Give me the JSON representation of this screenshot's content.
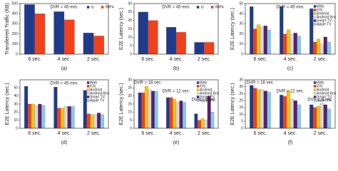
{
  "chart_data": [
    {
      "type": "bar",
      "caption": "(a)",
      "y_label": "Transferred Traffic (KB)",
      "annotations": [
        "DVR = 45 min."
      ],
      "categories": [
        "6 sec.",
        "4 sec.",
        "2 sec."
      ],
      "series": [
        {
          "name": "ts",
          "color": "#1f3b8c",
          "values": [
            490,
            420,
            210
          ]
        },
        {
          "name": "fMP4",
          "color": "#f0401c",
          "values": [
            400,
            340,
            180
          ]
        }
      ],
      "ylim": [
        0,
        500
      ],
      "yticks": [
        0,
        100,
        200,
        300,
        400,
        500
      ],
      "legend": "upper right"
    },
    {
      "type": "bar",
      "caption": "(b)",
      "y_label": "E2E Latency (sec.)",
      "annotations": [
        "DVR = 45 min."
      ],
      "categories": [
        "6 sec.",
        "4 sec.",
        "2 sec."
      ],
      "series": [
        {
          "name": "ts",
          "color": "#1f3b8c",
          "values": [
            25,
            16,
            7
          ]
        },
        {
          "name": "fMP4",
          "color": "#f0401c",
          "values": [
            20,
            13,
            7
          ]
        }
      ],
      "ylim": [
        0,
        30
      ],
      "yticks": [
        0,
        5,
        10,
        15,
        20,
        25,
        30
      ],
      "legend": "upper right"
    },
    {
      "type": "bar",
      "caption": "(c)",
      "y_label": "E2E Latency (sec.)",
      "annotations": [
        "DVR = 45 min."
      ],
      "categories": [
        "6 sec.",
        "4 sec.",
        "2 sec."
      ],
      "series": [
        {
          "name": "Web",
          "color": "#1f3b8c",
          "values": [
            47,
            47,
            45
          ]
        },
        {
          "name": "iOS",
          "color": "#f0401c",
          "values": [
            25,
            20,
            12
          ]
        },
        {
          "name": "Android",
          "color": "#f5c518",
          "values": [
            29,
            24,
            15
          ]
        },
        {
          "name": "Android Box",
          "color": "#d9d9d9",
          "values": [
            27,
            20,
            10
          ]
        },
        {
          "name": "Smart TV",
          "color": "#5a1f6e",
          "values": [
            28,
            21,
            17
          ]
        },
        {
          "name": "Apple TV",
          "color": "#86c9e8",
          "values": [
            24,
            18,
            12
          ]
        }
      ],
      "ylim": [
        0,
        50
      ],
      "yticks": [
        0,
        10,
        20,
        30,
        40,
        50
      ],
      "legend": "upper right"
    },
    {
      "type": "bar",
      "caption": "(d)",
      "y_label": "E2E Latency (sec.)",
      "annotations": [
        "DVR = 45 min."
      ],
      "categories": [
        "6 sec.",
        "4 sec.",
        "2 sec."
      ],
      "series": [
        {
          "name": "Web",
          "color": "#1f3b8c",
          "values": [
            52,
            51,
            47
          ]
        },
        {
          "name": "iOS",
          "color": "#f0401c",
          "values": [
            30,
            25,
            18
          ]
        },
        {
          "name": "Android",
          "color": "#f5c518",
          "values": [
            30,
            25,
            17
          ]
        },
        {
          "name": "Android Box",
          "color": "#d9d9d9",
          "values": [
            28,
            27,
            17
          ]
        },
        {
          "name": "Smart TV",
          "color": "#5a1f6e",
          "values": [
            30,
            27,
            19
          ]
        },
        {
          "name": "Apple TV",
          "color": "#86c9e8",
          "values": [
            28,
            27,
            17
          ]
        }
      ],
      "ylim": [
        0,
        60
      ],
      "yticks": [
        0,
        10,
        20,
        30,
        40,
        50
      ],
      "legend": "upper right"
    },
    {
      "type": "bar",
      "caption": "(e)",
      "y_label": "E2E Latency (sec.)",
      "annotations": [
        "DVR = 18 sec.",
        "DVR = 12 sec.",
        "DVR = 6 sec."
      ],
      "categories": [
        "6 sec.",
        "4 sec.",
        "2 sec."
      ],
      "series": [
        {
          "name": "Web",
          "color": "#1f3b8c",
          "values": [
            22,
            19,
            9
          ]
        },
        {
          "name": "iOS",
          "color": "#f0401c",
          "values": [
            22,
            19,
            5
          ]
        },
        {
          "name": "Android",
          "color": "#f5c518",
          "values": [
            26,
            18,
            6
          ]
        },
        {
          "name": "Android Box",
          "color": "#d9d9d9",
          "values": [
            24,
            16,
            5
          ]
        },
        {
          "name": "Smart TV",
          "color": "#5a1f6e",
          "values": [
            23,
            17,
            20
          ]
        },
        {
          "name": "Apple TV",
          "color": "#86c9e8",
          "values": [
            23,
            16,
            10
          ]
        }
      ],
      "ylim": [
        0,
        30
      ],
      "yticks": [
        0,
        5,
        10,
        15,
        20,
        25,
        30
      ],
      "legend": "upper right"
    },
    {
      "type": "bar",
      "caption": "(f)",
      "y_label": "E2E Latency (sec.)",
      "annotations": [
        "DVR = 18 sec.",
        "DVR = 12 sec.",
        "DVR = 6 sec."
      ],
      "categories": [
        "6 sec.",
        "4 sec.",
        "2 sec."
      ],
      "series": [
        {
          "name": "Web",
          "color": "#1f3b8c",
          "values": [
            31,
            24,
            17
          ]
        },
        {
          "name": "iOS",
          "color": "#f0401c",
          "values": [
            29,
            23,
            15
          ]
        },
        {
          "name": "Android",
          "color": "#f5c518",
          "values": [
            28,
            27,
            16
          ]
        },
        {
          "name": "Android Box",
          "color": "#d9d9d9",
          "values": [
            28,
            21,
            18
          ]
        },
        {
          "name": "Smart TV",
          "color": "#5a1f6e",
          "values": [
            27,
            20,
            17
          ]
        },
        {
          "name": "Apple TV",
          "color": "#86c9e8",
          "values": [
            26,
            17,
            14
          ]
        }
      ],
      "ylim": [
        0,
        35
      ],
      "yticks": [
        0,
        5,
        10,
        15,
        20,
        25,
        30,
        35
      ],
      "legend": "upper right"
    }
  ]
}
